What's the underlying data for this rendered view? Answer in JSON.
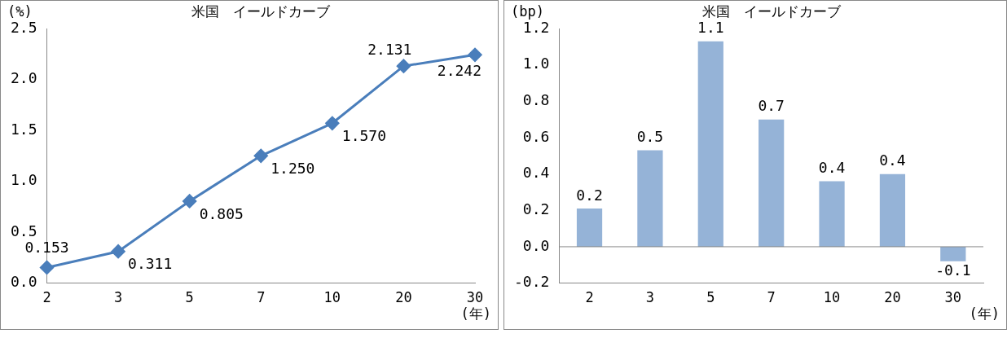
{
  "chart_data": [
    {
      "type": "line",
      "title": "米国　イールドカーブ",
      "ylabel": "(%)",
      "xlabel": "(年)",
      "categories": [
        "2",
        "3",
        "5",
        "7",
        "10",
        "20",
        "30"
      ],
      "series": [
        {
          "color": "#4a7ebb",
          "values": [
            0.153,
            0.311,
            0.805,
            1.25,
            1.57,
            2.131,
            2.242
          ],
          "value_labels": [
            "0.153",
            "0.311",
            "0.805",
            "1.250",
            "1.570",
            "2.131",
            "2.242"
          ]
        }
      ],
      "ylim": [
        0,
        2.5
      ],
      "yticks": [
        {
          "value": 0,
          "label": "0.0"
        },
        {
          "value": 0.5,
          "label": "0.5"
        },
        {
          "value": 1,
          "label": "1.0"
        },
        {
          "value": 1.5,
          "label": "1.5"
        },
        {
          "value": 2,
          "label": "2.0"
        },
        {
          "value": 2.5,
          "label": "2.5"
        }
      ],
      "marker": "diamond",
      "grid": false,
      "legend": false
    },
    {
      "type": "bar",
      "title": "米国　イールドカーブ",
      "ylabel": "(bp)",
      "xlabel": "(年)",
      "categories": [
        "2",
        "3",
        "5",
        "7",
        "10",
        "20",
        "30"
      ],
      "series": [
        {
          "color": "#95b3d7",
          "values": [
            0.21,
            0.53,
            1.13,
            0.7,
            0.36,
            0.4,
            -0.08
          ],
          "value_labels": [
            "0.2",
            "0.5",
            "1.1",
            "0.7",
            "0.4",
            "0.4",
            "-0.1"
          ]
        }
      ],
      "ylim": [
        -0.2,
        1.2
      ],
      "yticks": [
        {
          "value": -0.2,
          "label": "-0.2"
        },
        {
          "value": 0,
          "label": "0.0"
        },
        {
          "value": 0.2,
          "label": "0.2"
        },
        {
          "value": 0.4,
          "label": "0.4"
        },
        {
          "value": 0.6,
          "label": "0.6"
        },
        {
          "value": 0.8,
          "label": "0.8"
        },
        {
          "value": 1,
          "label": "1.0"
        },
        {
          "value": 1.2,
          "label": "1.2"
        }
      ],
      "ref_lines": [
        {
          "axis": "y",
          "value": 0,
          "color": "#888888"
        }
      ],
      "grid": false,
      "legend": false
    }
  ]
}
